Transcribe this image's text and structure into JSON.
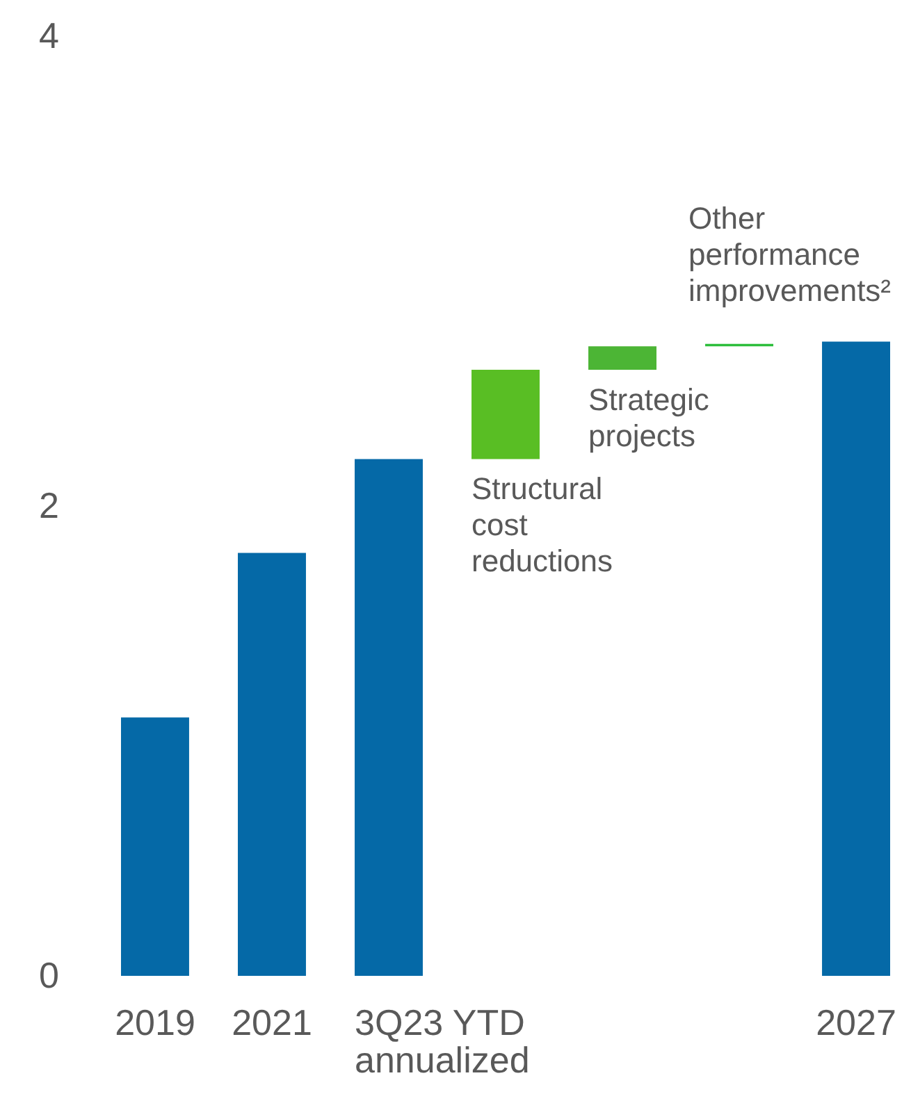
{
  "chart_data": {
    "type": "bar",
    "categories": [
      "2019",
      "2021",
      "3Q23 YTD annualized",
      "Structural cost reductions",
      "Strategic projects",
      "Other performance improvements²",
      "2027"
    ],
    "values": [
      1.1,
      1.8,
      2.2,
      0.38,
      0.1,
      0.01,
      2.7
    ],
    "base": [
      null,
      null,
      null,
      2.2,
      2.58,
      2.68,
      null
    ],
    "colors": [
      "#0569a7",
      "#0569a7",
      "#0569a7",
      "#59be24",
      "#4cb535",
      "#2dbe3c",
      "#0569a7"
    ],
    "ylim": [
      0,
      4
    ],
    "yticks": [
      0,
      2,
      4
    ],
    "grid": false
  }
}
